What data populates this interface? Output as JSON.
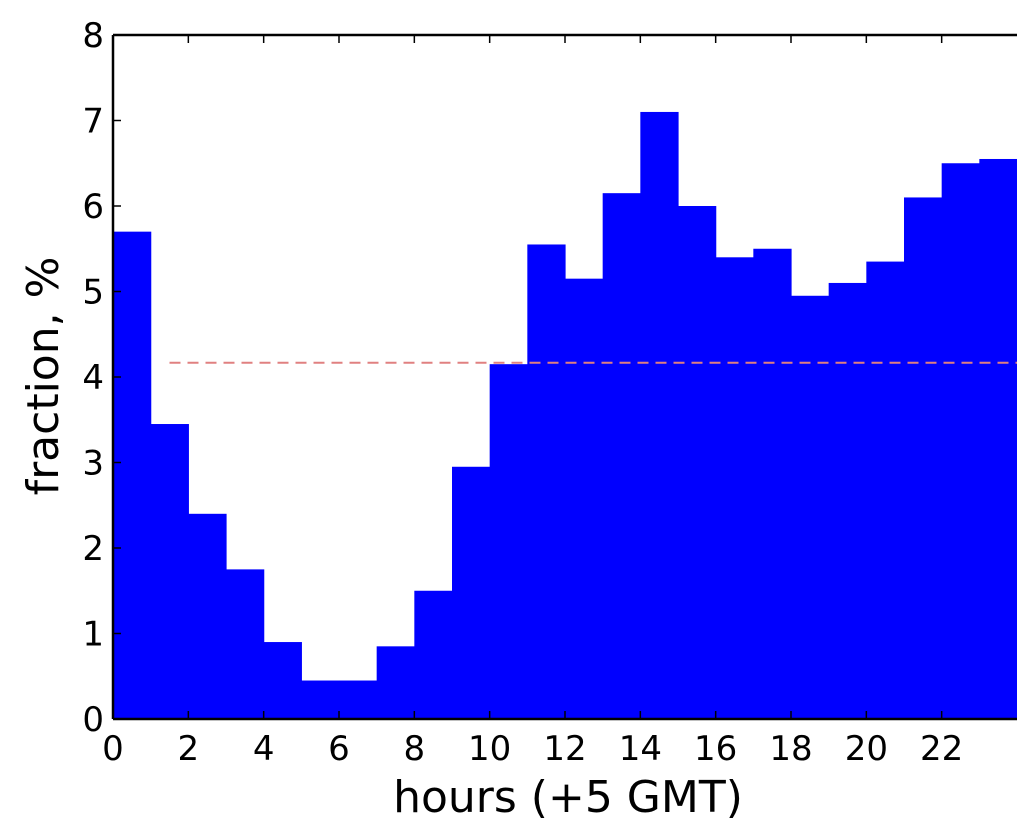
{
  "chart_data": {
    "type": "bar",
    "title": "",
    "xlabel": "hours (+5 GMT)",
    "ylabel": "fraction, %",
    "bin_edges": [
      0,
      1,
      2,
      3,
      4,
      5,
      6,
      7,
      8,
      9,
      10,
      11,
      12,
      13,
      14,
      15,
      16,
      17,
      18,
      19,
      20,
      21,
      22,
      23,
      24
    ],
    "values": [
      5.7,
      3.45,
      2.4,
      1.75,
      0.9,
      0.45,
      0.45,
      0.85,
      1.5,
      2.95,
      4.15,
      5.55,
      5.15,
      6.15,
      7.1,
      6.0,
      5.4,
      5.5,
      4.95,
      5.1,
      5.35,
      6.1,
      6.5,
      6.55
    ],
    "xlim": [
      0,
      24
    ],
    "ylim": [
      0,
      8
    ],
    "xticks": [
      0,
      2,
      4,
      6,
      8,
      10,
      12,
      14,
      16,
      18,
      20,
      22
    ],
    "yticks": [
      0,
      1,
      2,
      3,
      4,
      5,
      6,
      7,
      8
    ],
    "reference_line": {
      "y": 4.1667,
      "style": "dashed"
    },
    "grid": false,
    "colors": {
      "bar": "#0000ff",
      "reference_line": "#e08080",
      "axes": "#000000"
    }
  }
}
